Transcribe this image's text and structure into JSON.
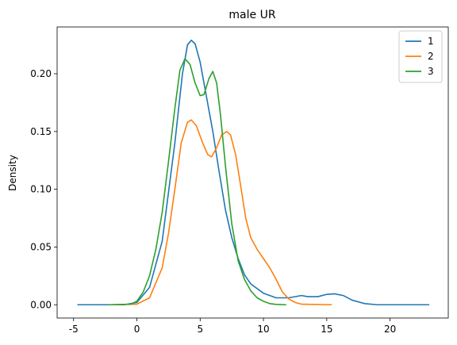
{
  "chart_data": {
    "type": "line",
    "title": "male UR",
    "xlabel": "",
    "ylabel": "Density",
    "xlim": [
      -6.3,
      24.6
    ],
    "ylim": [
      -0.0115,
      0.2405
    ],
    "xticks": [
      -5,
      0,
      5,
      10,
      15,
      20
    ],
    "yticks": [
      0.0,
      0.05,
      0.1,
      0.15,
      0.2
    ],
    "ytick_labels": [
      "0.00",
      "0.05",
      "0.10",
      "0.15",
      "0.20"
    ],
    "grid": false,
    "legend": {
      "placement": "top-right"
    },
    "series": [
      {
        "name": "1",
        "color": "#1f77b4",
        "points": [
          [
            -4.7,
            0.0
          ],
          [
            -1.0,
            0.0
          ],
          [
            0.0,
            0.002
          ],
          [
            1.0,
            0.015
          ],
          [
            2.0,
            0.055
          ],
          [
            3.0,
            0.14
          ],
          [
            3.6,
            0.2
          ],
          [
            4.0,
            0.225
          ],
          [
            4.3,
            0.229
          ],
          [
            4.6,
            0.226
          ],
          [
            5.0,
            0.21
          ],
          [
            5.5,
            0.18
          ],
          [
            6.0,
            0.15
          ],
          [
            6.5,
            0.115
          ],
          [
            7.0,
            0.082
          ],
          [
            7.5,
            0.058
          ],
          [
            8.0,
            0.04
          ],
          [
            8.5,
            0.026
          ],
          [
            9.0,
            0.018
          ],
          [
            10.0,
            0.01
          ],
          [
            11.0,
            0.006
          ],
          [
            12.0,
            0.006
          ],
          [
            13.0,
            0.008
          ],
          [
            13.5,
            0.007
          ],
          [
            14.3,
            0.007
          ],
          [
            15.0,
            0.009
          ],
          [
            15.6,
            0.0095
          ],
          [
            16.3,
            0.008
          ],
          [
            17.0,
            0.004
          ],
          [
            18.0,
            0.001
          ],
          [
            19.0,
            0.0
          ],
          [
            23.1,
            0.0
          ]
        ]
      },
      {
        "name": "2",
        "color": "#ff7f0e",
        "points": [
          [
            -2.2,
            0.0
          ],
          [
            0.0,
            0.0005
          ],
          [
            1.0,
            0.006
          ],
          [
            2.0,
            0.032
          ],
          [
            2.5,
            0.062
          ],
          [
            3.0,
            0.1
          ],
          [
            3.5,
            0.14
          ],
          [
            4.0,
            0.158
          ],
          [
            4.3,
            0.16
          ],
          [
            4.7,
            0.155
          ],
          [
            5.2,
            0.14
          ],
          [
            5.6,
            0.13
          ],
          [
            5.9,
            0.128
          ],
          [
            6.3,
            0.136
          ],
          [
            6.7,
            0.147
          ],
          [
            7.1,
            0.15
          ],
          [
            7.4,
            0.147
          ],
          [
            7.8,
            0.13
          ],
          [
            8.2,
            0.103
          ],
          [
            8.6,
            0.075
          ],
          [
            9.0,
            0.058
          ],
          [
            9.5,
            0.048
          ],
          [
            10.0,
            0.04
          ],
          [
            10.5,
            0.032
          ],
          [
            11.0,
            0.022
          ],
          [
            11.5,
            0.011
          ],
          [
            12.0,
            0.005
          ],
          [
            12.5,
            0.002
          ],
          [
            13.0,
            0.0005
          ],
          [
            15.4,
            0.0
          ]
        ]
      },
      {
        "name": "3",
        "color": "#2ca02c",
        "points": [
          [
            -2.2,
            0.0
          ],
          [
            -0.5,
            0.0005
          ],
          [
            0.0,
            0.003
          ],
          [
            0.5,
            0.011
          ],
          [
            1.0,
            0.025
          ],
          [
            1.5,
            0.048
          ],
          [
            2.0,
            0.08
          ],
          [
            2.5,
            0.124
          ],
          [
            3.0,
            0.17
          ],
          [
            3.4,
            0.203
          ],
          [
            3.8,
            0.213
          ],
          [
            4.2,
            0.208
          ],
          [
            4.6,
            0.192
          ],
          [
            5.0,
            0.181
          ],
          [
            5.3,
            0.182
          ],
          [
            5.7,
            0.196
          ],
          [
            6.0,
            0.202
          ],
          [
            6.3,
            0.192
          ],
          [
            6.6,
            0.165
          ],
          [
            7.0,
            0.12
          ],
          [
            7.5,
            0.07
          ],
          [
            8.0,
            0.038
          ],
          [
            8.5,
            0.022
          ],
          [
            9.0,
            0.012
          ],
          [
            9.5,
            0.006
          ],
          [
            10.0,
            0.003
          ],
          [
            10.5,
            0.001
          ],
          [
            11.0,
            0.0003
          ],
          [
            11.8,
            0.0
          ]
        ]
      }
    ]
  }
}
